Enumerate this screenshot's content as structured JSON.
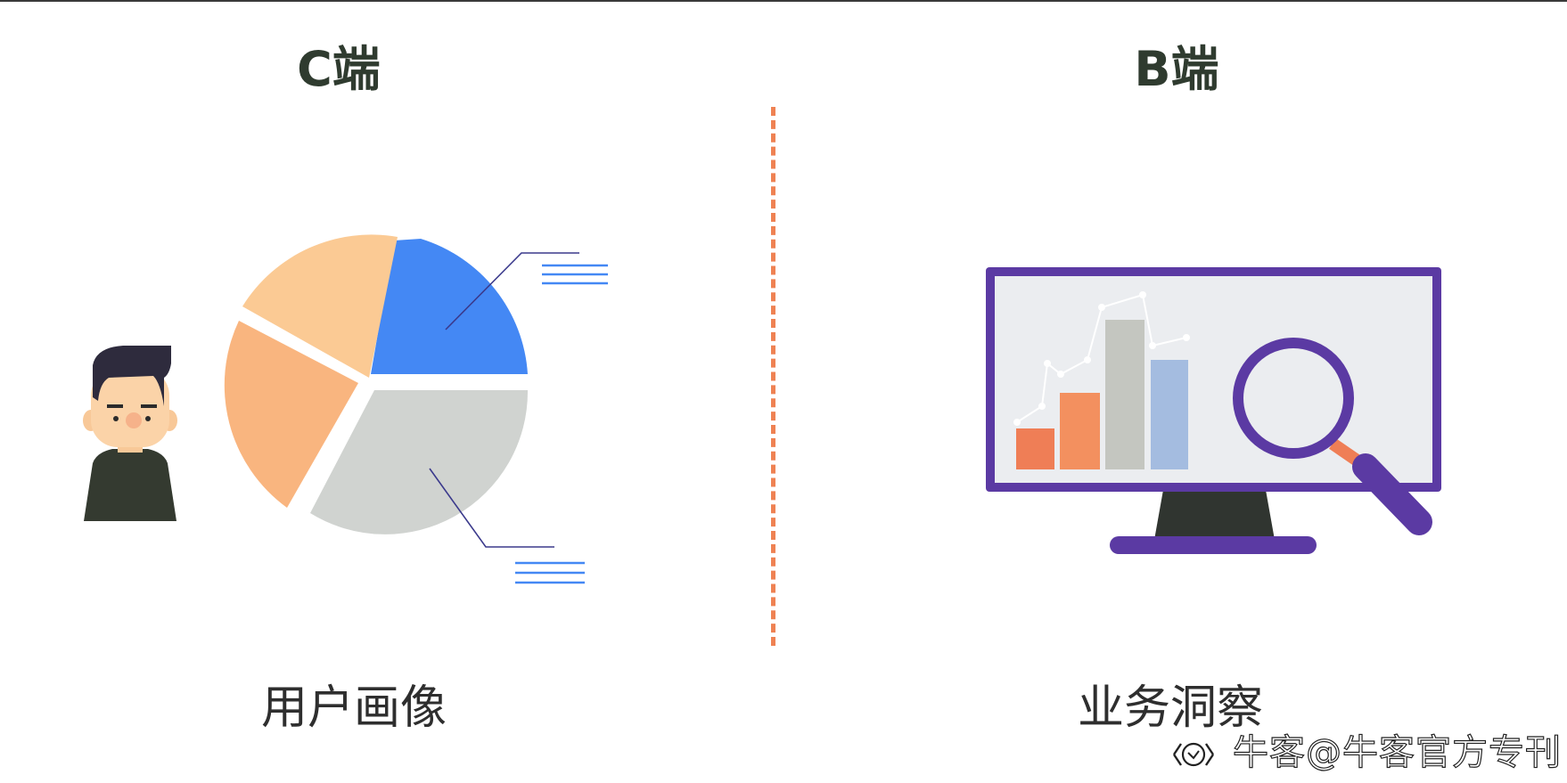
{
  "left": {
    "heading": "C端",
    "caption": "用户画像"
  },
  "right": {
    "heading": "B端",
    "caption": "业务洞察"
  },
  "watermark": {
    "text": "牛客@牛客官方专刊",
    "logo_icon": "niuke-logo-icon"
  },
  "colors": {
    "heading": "#2f3b2f",
    "divider": "#ef8253",
    "pie_blue": "#4488f4",
    "pie_light_orange": "#fbca94",
    "pie_orange": "#f9b57f",
    "pie_gray": "#d0d3d0",
    "monitor_frame": "#5b3aa3",
    "bar_orange_dark": "#ef7e56",
    "bar_orange": "#f3905f",
    "bar_gray": "#c4c6c0",
    "bar_blue": "#a4bce0"
  }
}
